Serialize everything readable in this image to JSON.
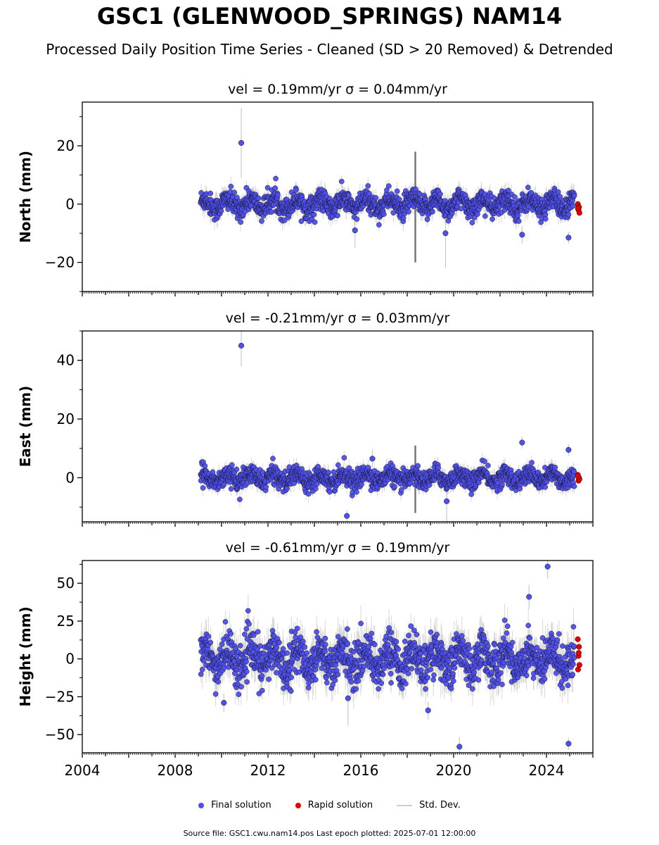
{
  "title": "GSC1 (GLENWOOD_SPRINGS) NAM14",
  "subtitle": "Processed Daily Position Time Series - Cleaned (SD > 20 Removed) & Detrended",
  "legend": {
    "final": "Final solution",
    "rapid": "Rapid solution",
    "std": "Std. Dev."
  },
  "footer": "Source file: GSC1.cwu.nam14.pos  Last epoch plotted: 2025-07-01 12:00:00",
  "colors": {
    "final": "#4f4ff0",
    "rapid": "#e60000",
    "std": "#c8c8c8"
  },
  "chart_data": [
    {
      "type": "scatter",
      "title": "vel = 0.19mm/yr   σ = 0.04mm/yr",
      "ylabel": "North (mm)",
      "xlim": [
        2004,
        2026
      ],
      "ylim": [
        -30,
        35
      ],
      "yticks": [
        -20,
        0,
        20
      ],
      "ytick_labels": [
        "−20",
        "0",
        "20"
      ],
      "data_start": 2009.1,
      "data_end": 2025.2,
      "scatter_amplitude": 6,
      "outliers": [
        {
          "x": 2010.85,
          "y": 21,
          "err": 12
        },
        {
          "x": 2015.75,
          "y": -9,
          "err": 6
        },
        {
          "x": 2019.65,
          "y": -10,
          "err": 12
        },
        {
          "x": 2022.95,
          "y": -10.5,
          "err": 3
        },
        {
          "x": 2024.95,
          "y": -11.5,
          "err": 2
        }
      ],
      "rapid": [
        {
          "x": 2025.35,
          "y": 0
        },
        {
          "x": 2025.4,
          "y": -1
        },
        {
          "x": 2025.38,
          "y": -2
        },
        {
          "x": 2025.42,
          "y": -3
        },
        {
          "x": 2025.36,
          "y": -1.5
        }
      ]
    },
    {
      "type": "scatter",
      "title": "vel = -0.21mm/yr   σ = 0.03mm/yr",
      "ylabel": "East (mm)",
      "xlim": [
        2004,
        2026
      ],
      "ylim": [
        -15,
        50
      ],
      "yticks": [
        0,
        20,
        40
      ],
      "ytick_labels": [
        "0",
        "20",
        "40"
      ],
      "data_start": 2009.1,
      "data_end": 2025.2,
      "scatter_amplitude": 5,
      "outliers": [
        {
          "x": 2010.85,
          "y": 45,
          "err": 7
        },
        {
          "x": 2015.4,
          "y": -13,
          "err": 2
        },
        {
          "x": 2016.5,
          "y": 6.5,
          "err": 3
        },
        {
          "x": 2019.7,
          "y": -8,
          "err": 8
        },
        {
          "x": 2022.95,
          "y": 12,
          "err": 2
        },
        {
          "x": 2024.95,
          "y": 9.5,
          "err": 2
        }
      ],
      "rapid": [
        {
          "x": 2025.35,
          "y": 1
        },
        {
          "x": 2025.4,
          "y": 0
        },
        {
          "x": 2025.38,
          "y": -1
        },
        {
          "x": 2025.42,
          "y": -0.5
        },
        {
          "x": 2025.36,
          "y": 0.5
        }
      ]
    },
    {
      "type": "scatter",
      "title": "vel = -0.61mm/yr   σ = 0.19mm/yr",
      "ylabel": "Height (mm)",
      "xlabel": "",
      "xlim": [
        2004,
        2026
      ],
      "ylim": [
        -62,
        65
      ],
      "yticks": [
        -50,
        -25,
        0,
        25,
        50
      ],
      "ytick_labels": [
        "−50",
        "−25",
        "0",
        "25",
        "50"
      ],
      "xticks": [
        2004,
        2008,
        2012,
        2016,
        2020,
        2024
      ],
      "xtick_labels": [
        "2004",
        "2008",
        "2012",
        "2016",
        "2020",
        "2024"
      ],
      "data_start": 2009.1,
      "data_end": 2025.2,
      "scatter_amplitude": 22,
      "outliers": [
        {
          "x": 2010.1,
          "y": -29,
          "err": 6
        },
        {
          "x": 2015.45,
          "y": -26,
          "err": 18
        },
        {
          "x": 2018.9,
          "y": -34,
          "err": 6
        },
        {
          "x": 2020.25,
          "y": -58,
          "err": 6
        },
        {
          "x": 2023.25,
          "y": 41,
          "err": 8
        },
        {
          "x": 2024.05,
          "y": 61,
          "err": 8
        },
        {
          "x": 2024.95,
          "y": -56,
          "err": 4
        }
      ],
      "rapid": [
        {
          "x": 2025.35,
          "y": 13
        },
        {
          "x": 2025.4,
          "y": 8
        },
        {
          "x": 2025.38,
          "y": 2
        },
        {
          "x": 2025.42,
          "y": -4
        },
        {
          "x": 2025.36,
          "y": -7
        },
        {
          "x": 2025.39,
          "y": 4
        }
      ]
    }
  ]
}
